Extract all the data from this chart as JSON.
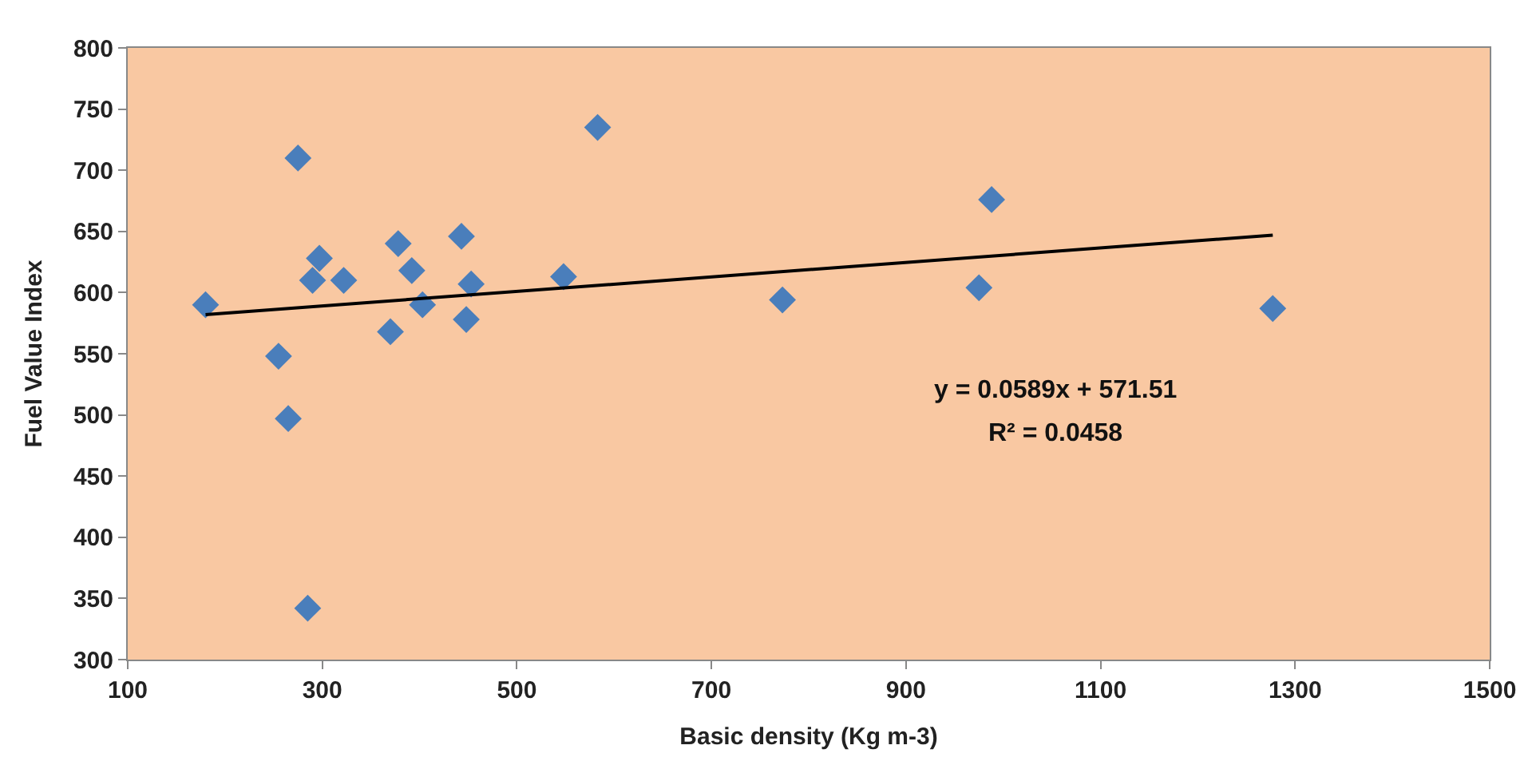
{
  "chart_data": {
    "type": "scatter",
    "xlabel": "Basic density (Kg m-3)",
    "ylabel": "Fuel Value Index",
    "series": [
      {
        "color": "#4a7ebb",
        "marker": "diamond",
        "x": [
          180,
          255,
          265,
          275,
          285,
          290,
          297,
          322,
          370,
          378,
          392,
          403,
          443,
          448,
          453,
          548,
          583,
          773,
          975,
          988,
          1277
        ],
        "values": [
          590,
          548,
          497,
          710,
          342,
          610,
          628,
          610,
          568,
          640,
          618,
          590,
          646,
          578,
          607,
          613,
          735,
          594,
          604,
          676,
          587
        ]
      },
      {
        "type": "line",
        "color": "#000000",
        "marker": "none",
        "x": [
          180,
          1277
        ],
        "values": [
          582,
          647
        ]
      }
    ],
    "xlim": [
      100,
      1500
    ],
    "xticks": [
      100,
      300,
      500,
      700,
      900,
      1100,
      1300,
      1500
    ],
    "ylim": [
      300,
      800
    ],
    "yticks": [
      300,
      350,
      400,
      450,
      500,
      550,
      600,
      650,
      700,
      750,
      800
    ],
    "grid": false,
    "annotations": [
      "y = 0.0589x + 571.51",
      "R² = 0.0458"
    ]
  }
}
